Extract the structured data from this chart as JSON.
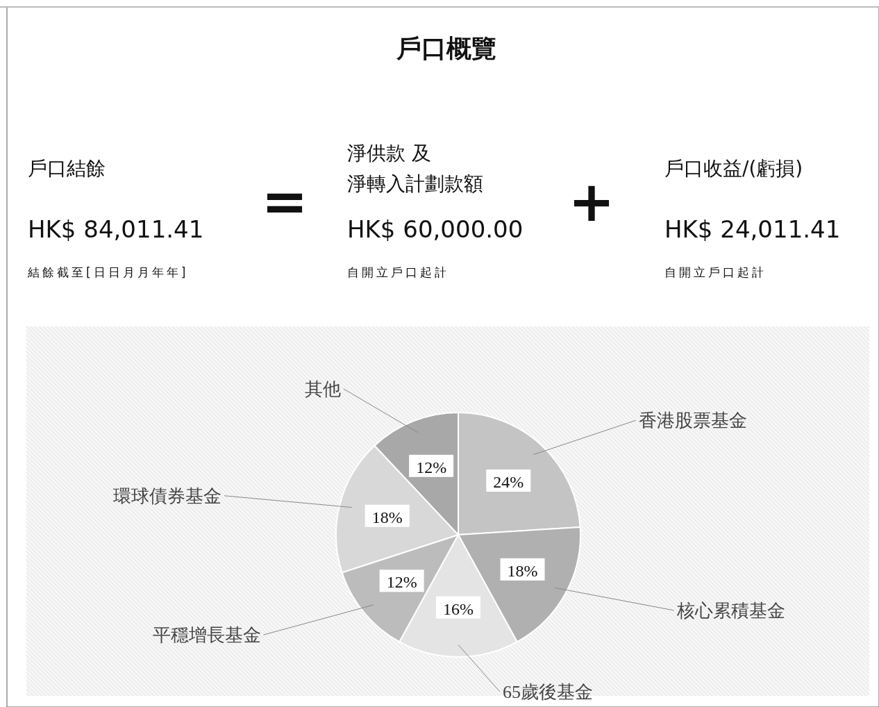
{
  "chart_data": [
    {
      "type": "other",
      "title": "戶口概覽",
      "annotations": [
        "戶口結餘",
        "HK$ 84,011.41",
        "結餘截至[日日月月年年]",
        "=",
        "淨供款 及",
        "淨轉入計劃款額",
        "HK$ 60,000.00",
        "自開立戶口起計",
        "+",
        "戶口收益/(虧損)",
        "HK$ 24,011.41",
        "自開立戶口起計"
      ]
    },
    {
      "type": "pie",
      "categories": [
        "香港股票基金",
        "核心累積基金",
        "65歲後基金",
        "平穩增長基金",
        "環球債券基金",
        "其他"
      ],
      "values": [
        24,
        18,
        16,
        12,
        18,
        12
      ],
      "value_labels": [
        "24%",
        "18%",
        "16%",
        "12%",
        "18%",
        "12%"
      ],
      "colors": [
        "#c4c4c4",
        "#b0b0b0",
        "#e4e4e4",
        "#bcbcbc",
        "#d8d8d8",
        "#a8a8a8"
      ]
    }
  ]
}
